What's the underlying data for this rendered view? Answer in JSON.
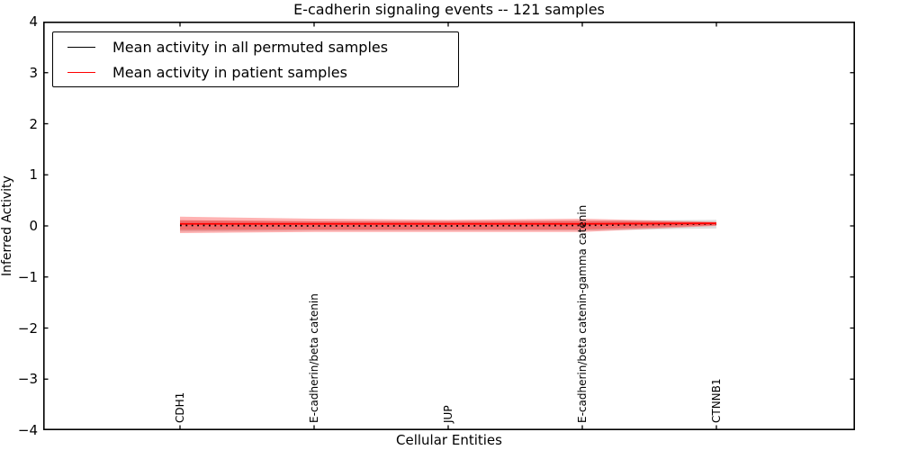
{
  "chart_data": {
    "type": "line",
    "title": "E-cadherin signaling events -- 121 samples",
    "xlabel": "Cellular Entities",
    "ylabel": "Inferred Activity",
    "ylim": [
      -4,
      4
    ],
    "ytick_labels": [
      "4",
      "3",
      "2",
      "1",
      "0",
      "−1",
      "−2",
      "−3",
      "−4"
    ],
    "grid": false,
    "legend_position": "upper left",
    "background": "#ffffff",
    "frame_color": "#000000",
    "categories": [
      "CDH1",
      "E-cadherin/beta catenin",
      "JUP",
      "E-cadherin/beta catenin-gamma catenin",
      "CTNNB1"
    ],
    "series": [
      {
        "name": "Mean activity in all permuted samples",
        "color": "#000000",
        "line_style": "dotted",
        "values": [
          0.01,
          0.0,
          0.0,
          0.01,
          0.04
        ],
        "band": {
          "color": "#000000",
          "opacity": 0.13,
          "low": [
            -0.11,
            -0.09,
            -0.09,
            -0.09,
            -0.05
          ],
          "high": [
            0.11,
            0.09,
            0.09,
            0.1,
            0.12
          ]
        }
      },
      {
        "name": "Mean activity in patient samples",
        "color": "#ff0000",
        "line_style": "solid",
        "values": [
          0.04,
          0.04,
          0.04,
          0.04,
          0.05
        ],
        "band_outer": {
          "opacity": 0.3,
          "low": [
            -0.14,
            -0.12,
            -0.12,
            -0.12,
            0.0
          ],
          "high": [
            0.18,
            0.14,
            0.12,
            0.14,
            0.08
          ]
        },
        "band_inner": {
          "opacity": 0.3,
          "low": [
            -0.08,
            -0.07,
            -0.07,
            -0.07,
            0.01
          ],
          "high": [
            0.11,
            0.09,
            0.09,
            0.1,
            0.07
          ]
        }
      }
    ]
  }
}
